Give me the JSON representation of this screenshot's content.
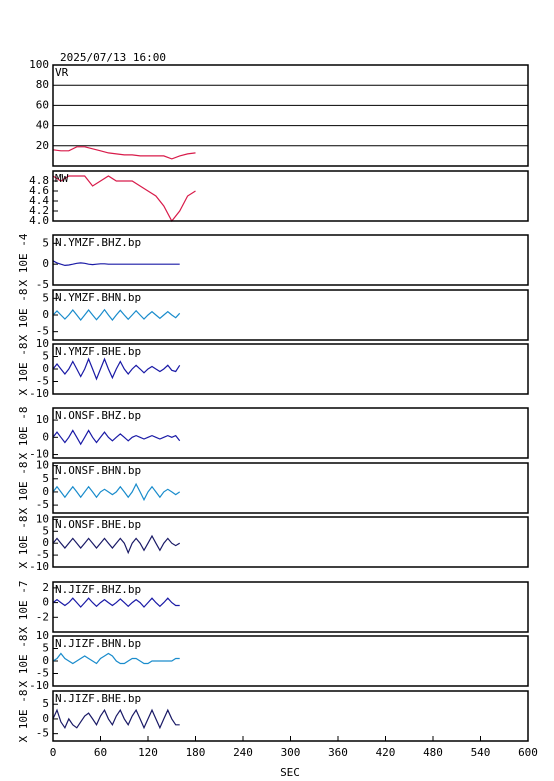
{
  "chart_data": {
    "type": "line",
    "title": "2025/07/13 16:00",
    "xlabel": "SEC",
    "xlim": [
      0,
      600
    ],
    "xticks": [
      0,
      60,
      120,
      180,
      240,
      300,
      360,
      420,
      480,
      540,
      600
    ],
    "panels": [
      {
        "name": "VR",
        "color": "#d81b4a",
        "grid": true,
        "ylim": [
          0,
          100
        ],
        "yticks": [
          20,
          40,
          60,
          80,
          100
        ],
        "x": [
          0,
          10,
          20,
          30,
          40,
          50,
          60,
          70,
          80,
          90,
          100,
          110,
          120,
          130,
          140,
          150,
          160,
          170,
          180
        ],
        "values": [
          16,
          15,
          15,
          19,
          19,
          17,
          15,
          13,
          12,
          11,
          11,
          10,
          10,
          10,
          10,
          7,
          10,
          12,
          13
        ]
      },
      {
        "name": "MW",
        "color": "#d81b4a",
        "grid": false,
        "ylim": [
          4,
          5
        ],
        "yticks": [
          {
            "value": 4,
            "label": "4.0"
          },
          4.2,
          4.4,
          4.6,
          4.8
        ],
        "x": [
          0,
          10,
          20,
          30,
          40,
          50,
          60,
          70,
          80,
          90,
          100,
          110,
          120,
          130,
          140,
          150,
          160,
          170,
          180
        ],
        "values": [
          4.9,
          4.8,
          4.9,
          4.9,
          4.9,
          4.7,
          4.8,
          4.9,
          4.8,
          4.8,
          4.8,
          4.7,
          4.6,
          4.5,
          4.3,
          4.0,
          4.2,
          4.5,
          4.6
        ]
      },
      {
        "name": "N.YMZF.BHZ.bp",
        "scale": "X 10E -4",
        "color": "#1a1aa6",
        "grid": false,
        "ylim": [
          -5,
          7
        ],
        "yticks": [
          -5,
          0,
          5
        ],
        "x": [
          0,
          5,
          10,
          15,
          20,
          25,
          30,
          35,
          40,
          45,
          50,
          55,
          60,
          65,
          70,
          75,
          80,
          85,
          90,
          95,
          100,
          105,
          110,
          115,
          120,
          125,
          130,
          135,
          140,
          145,
          150,
          155,
          160
        ],
        "values": [
          0.8,
          0.3,
          0,
          -0.3,
          -0.2,
          0,
          0.2,
          0.3,
          0.2,
          0,
          -0.1,
          0,
          0.1,
          0.1,
          0,
          0,
          0,
          0,
          0,
          0,
          0,
          0,
          0,
          0,
          0,
          0,
          0,
          0,
          0,
          0,
          0,
          0,
          0
        ]
      },
      {
        "name": "N.YMZF.BHN.bp",
        "scale": "X 10E -8",
        "color": "#1a8ccc",
        "grid": false,
        "ylim": [
          -7.5,
          7.5
        ],
        "yticks": [
          -5,
          0,
          5
        ],
        "x": [
          0,
          5,
          10,
          15,
          20,
          25,
          30,
          35,
          40,
          45,
          50,
          55,
          60,
          65,
          70,
          75,
          80,
          85,
          90,
          95,
          100,
          105,
          110,
          115,
          120,
          125,
          130,
          135,
          140,
          145,
          150,
          155,
          160
        ],
        "values": [
          0,
          1.2,
          0,
          -1.2,
          0,
          1.5,
          0,
          -1.5,
          0,
          1.5,
          0,
          -1.4,
          0,
          1.6,
          0,
          -1.5,
          0,
          1.4,
          0,
          -1.3,
          0,
          1.3,
          0,
          -1.2,
          0,
          1,
          0,
          -1,
          0,
          1,
          0,
          -0.8,
          0.5
        ]
      },
      {
        "name": "N.YMZF.BHE.bp",
        "scale": "X 10E -8",
        "color": "#1a1aa6",
        "grid": false,
        "ylim": [
          -10,
          10
        ],
        "yticks": [
          -10,
          -5,
          0,
          5,
          10
        ],
        "x": [
          0,
          5,
          10,
          15,
          20,
          25,
          30,
          35,
          40,
          45,
          50,
          55,
          60,
          65,
          70,
          75,
          80,
          85,
          90,
          95,
          100,
          105,
          110,
          115,
          120,
          125,
          130,
          135,
          140,
          145,
          150,
          155,
          160
        ],
        "values": [
          0,
          2,
          0,
          -2,
          0,
          3,
          0,
          -3,
          0,
          4,
          0,
          -4,
          0,
          4,
          0,
          -3.5,
          0,
          3,
          0,
          -2,
          0,
          1.5,
          0,
          -1.5,
          0,
          1,
          0,
          -1,
          0,
          1.5,
          -0.5,
          -1,
          1.5
        ]
      },
      {
        "name": "N.ONSF.BHZ.bp",
        "scale": "X 10E -8",
        "color": "#1a1aa6",
        "grid": false,
        "ylim": [
          -12,
          17
        ],
        "yticks": [
          -10,
          0,
          10
        ],
        "x": [
          0,
          5,
          10,
          15,
          20,
          25,
          30,
          35,
          40,
          45,
          50,
          55,
          60,
          65,
          70,
          75,
          80,
          85,
          90,
          95,
          100,
          105,
          110,
          115,
          120,
          125,
          130,
          135,
          140,
          145,
          150,
          155,
          160
        ],
        "values": [
          0,
          3,
          0,
          -3,
          0,
          4,
          0,
          -4,
          0,
          4,
          0,
          -3,
          0,
          3,
          0,
          -2,
          0,
          2,
          0,
          -2,
          0,
          1,
          0,
          -1,
          0,
          1,
          0,
          -1,
          0,
          1,
          0,
          1,
          -2
        ]
      },
      {
        "name": "N.ONSF.BHN.bp",
        "scale": "X 10E -8",
        "color": "#1a8ccc",
        "grid": false,
        "ylim": [
          -8,
          11
        ],
        "yticks": [
          -5,
          0,
          5,
          10
        ],
        "x": [
          0,
          5,
          10,
          15,
          20,
          25,
          30,
          35,
          40,
          45,
          50,
          55,
          60,
          65,
          70,
          75,
          80,
          85,
          90,
          95,
          100,
          105,
          110,
          115,
          120,
          125,
          130,
          135,
          140,
          145,
          150,
          155,
          160
        ],
        "values": [
          0,
          2,
          0,
          -2,
          0,
          2,
          0,
          -2,
          0,
          2,
          0,
          -2,
          0,
          1,
          0,
          -1,
          0,
          2,
          0,
          -2,
          0,
          3,
          0,
          -3,
          0,
          2,
          0,
          -2,
          0,
          1,
          0,
          -1,
          0
        ]
      },
      {
        "name": "N.ONSF.BHE.bp",
        "scale": "X 10E -8",
        "color": "#1a1a66",
        "grid": false,
        "ylim": [
          -10,
          11
        ],
        "yticks": [
          -10,
          -5,
          0,
          5,
          10
        ],
        "x": [
          0,
          5,
          10,
          15,
          20,
          25,
          30,
          35,
          40,
          45,
          50,
          55,
          60,
          65,
          70,
          75,
          80,
          85,
          90,
          95,
          100,
          105,
          110,
          115,
          120,
          125,
          130,
          135,
          140,
          145,
          150,
          155,
          160
        ],
        "values": [
          0,
          2,
          0,
          -2,
          0,
          2,
          0,
          -2,
          0,
          2,
          0,
          -2,
          0,
          2,
          0,
          -2,
          0,
          2,
          0,
          -4,
          0,
          2,
          0,
          -3,
          0,
          3,
          0,
          -3,
          0,
          2,
          0,
          -1,
          0
        ]
      },
      {
        "name": "N.JIZF.BHZ.bp",
        "scale": "X 10E -7",
        "color": "#1a1aa6",
        "grid": false,
        "ylim": [
          -4,
          2.8
        ],
        "yticks": [
          -2,
          0,
          2
        ],
        "x": [
          0,
          5,
          10,
          15,
          20,
          25,
          30,
          35,
          40,
          45,
          50,
          55,
          60,
          65,
          70,
          75,
          80,
          85,
          90,
          95,
          100,
          105,
          110,
          115,
          120,
          125,
          130,
          135,
          140,
          145,
          150,
          155,
          160
        ],
        "values": [
          0,
          0.4,
          0,
          -0.4,
          0,
          0.6,
          0,
          -0.6,
          0,
          0.6,
          0,
          -0.5,
          0,
          0.4,
          0,
          -0.4,
          0,
          0.5,
          0,
          -0.5,
          0,
          0.4,
          0,
          -0.6,
          0,
          0.6,
          0,
          -0.5,
          0,
          0.6,
          0,
          -0.4,
          -0.4
        ]
      },
      {
        "name": "N.JIZF.BHN.bp",
        "scale": "X 10E -8",
        "color": "#1a8ccc",
        "grid": false,
        "ylim": [
          -10,
          10
        ],
        "yticks": [
          -10,
          -5,
          0,
          5,
          10
        ],
        "x": [
          0,
          5,
          10,
          15,
          20,
          25,
          30,
          35,
          40,
          45,
          50,
          55,
          60,
          65,
          70,
          75,
          80,
          85,
          90,
          95,
          100,
          105,
          110,
          115,
          120,
          125,
          130,
          135,
          140,
          145,
          150,
          155,
          160
        ],
        "values": [
          0,
          1,
          3,
          1,
          0,
          -1,
          0,
          1,
          2,
          1,
          0,
          -1,
          1,
          2,
          3,
          2,
          0,
          -1,
          -1,
          0,
          1,
          1,
          0,
          -1,
          -1,
          0,
          0,
          0,
          0,
          0,
          0,
          1,
          1
        ]
      },
      {
        "name": "N.JIZF.BHE.bp",
        "scale": "X 10E -8",
        "color": "#1a1a66",
        "grid": false,
        "ylim": [
          -7.5,
          9.5
        ],
        "yticks": [
          -5,
          0,
          5
        ],
        "x": [
          0,
          5,
          10,
          15,
          20,
          25,
          30,
          35,
          40,
          45,
          50,
          55,
          60,
          65,
          70,
          75,
          80,
          85,
          90,
          95,
          100,
          105,
          110,
          115,
          120,
          125,
          130,
          135,
          140,
          145,
          150,
          155,
          160
        ],
        "values": [
          0,
          3,
          -1,
          -3,
          0,
          -2,
          -3,
          -1,
          1,
          2,
          0,
          -2,
          1,
          3,
          0,
          -2,
          1,
          3,
          0,
          -2,
          1,
          3,
          0,
          -3,
          0,
          3,
          0,
          -3,
          0,
          3,
          0,
          -2,
          -2
        ]
      }
    ]
  }
}
